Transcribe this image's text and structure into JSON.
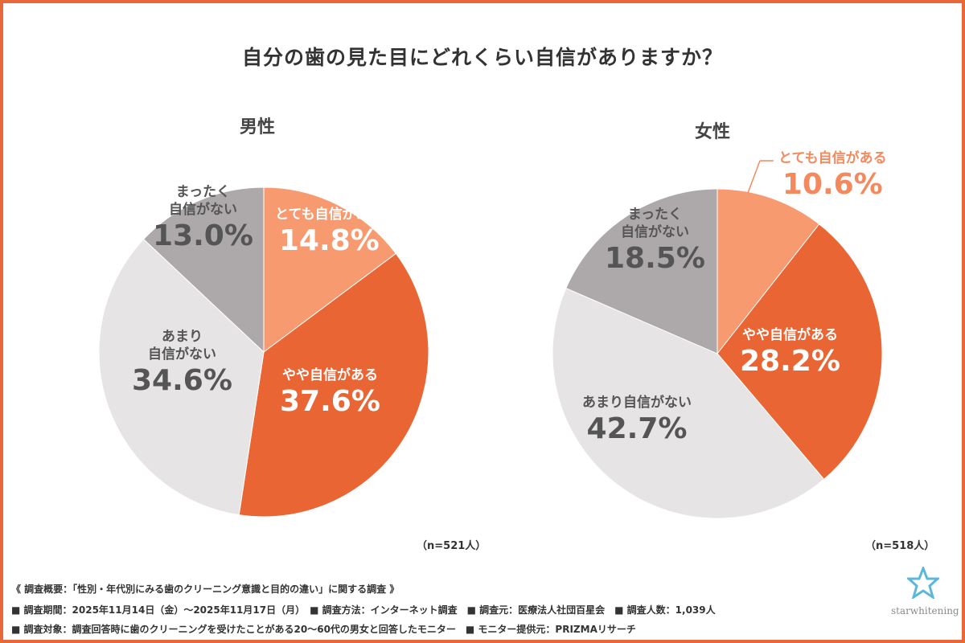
{
  "title": "自分の歯の見た目にどれくらい自信がありますか？",
  "colors": {
    "very_confident": "#F89A70",
    "somewhat_confident": "#E96534",
    "not_very": "#E6E4E5",
    "not_at_all": "#ADA9AB",
    "border": "#E8683A"
  },
  "chart_data": [
    {
      "type": "pie",
      "title": "男性",
      "sample": "（n=521人）",
      "categories": [
        "とても自信がある",
        "やや自信がある",
        "あまり自信がない",
        "まったく自信がない"
      ],
      "values": [
        14.8,
        37.6,
        34.6,
        13.0
      ],
      "labels": [
        "14.8%",
        "37.6%",
        "34.6%",
        "13.0%"
      ]
    },
    {
      "type": "pie",
      "title": "女性",
      "sample": "（n=518人）",
      "categories": [
        "とても自信がある",
        "やや自信がある",
        "あまり自信がない",
        "まったく自信がない"
      ],
      "values": [
        10.6,
        28.2,
        42.7,
        18.5
      ],
      "labels": [
        "10.6%",
        "28.2%",
        "42.7%",
        "18.5%"
      ]
    }
  ],
  "label_text": {
    "very": "とても自信がある",
    "somewhat": "やや自信がある",
    "notvery_l1": "あまり",
    "notvery_l2": "自信がない",
    "notvery_full": "あまり自信がない",
    "notall_l1": "まったく",
    "notall_l2": "自信がない"
  },
  "footer": {
    "line1": "《 調査概要：「性別・年代別にみる歯のクリーニング意識と目的の違い」に関する調査 》",
    "line2": "■ 調査期間：2025年11月14日（金）～2025年11月17日（月）　■ 調査方法：インターネット調査　■ 調査元：医療法人社団百星会　■ 調査人数：1,039人",
    "line3": "■ 調査対象：調査回答時に歯のクリーニングを受けたことがある20～60代の男女と回答したモニター　■ モニター提供元：PRIZMAリサーチ"
  },
  "logo": "starwhitening"
}
